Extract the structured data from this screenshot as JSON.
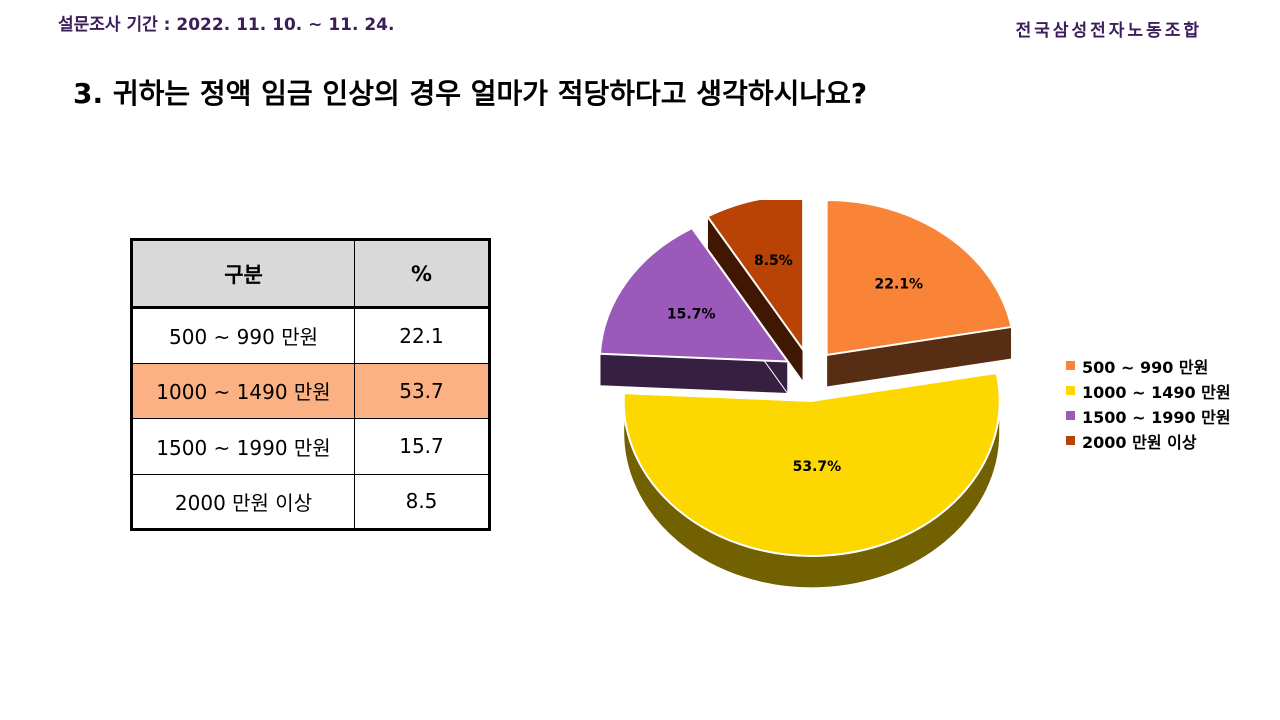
{
  "header": {
    "period": "설문조사 기간 : 2022. 11. 10. ~ 11. 24.",
    "organization": "전국삼성전자노동조합"
  },
  "question": "3. 귀하는 정액 임금 인상의 경우 얼마가 적당하다고 생각하시나요?",
  "table": {
    "headers": [
      "구분",
      "%"
    ],
    "rows": [
      {
        "label": "500 ~ 990 만원",
        "value": "22.1"
      },
      {
        "label": "1000 ~ 1490 만원",
        "value": "53.7"
      },
      {
        "label": "1500 ~ 1990 만원",
        "value": "15.7"
      },
      {
        "label": "2000 만원 이상",
        "value": "8.5"
      }
    ],
    "highlight_color": "#fbb183"
  },
  "chart_data": {
    "type": "pie",
    "style": "3d-exploded",
    "categories": [
      "500 ~ 990 만원",
      "1000 ~ 1490 만원",
      "1500 ~ 1990 만원",
      "2000 만원 이상"
    ],
    "values": [
      22.1,
      53.7,
      15.7,
      8.5
    ],
    "data_labels": [
      "22.1%",
      "53.7%",
      "15.7%",
      "8.5%"
    ],
    "colors": [
      "#f98437",
      "#fcd700",
      "#9b59b9",
      "#b84305"
    ],
    "legend_position": "right"
  }
}
